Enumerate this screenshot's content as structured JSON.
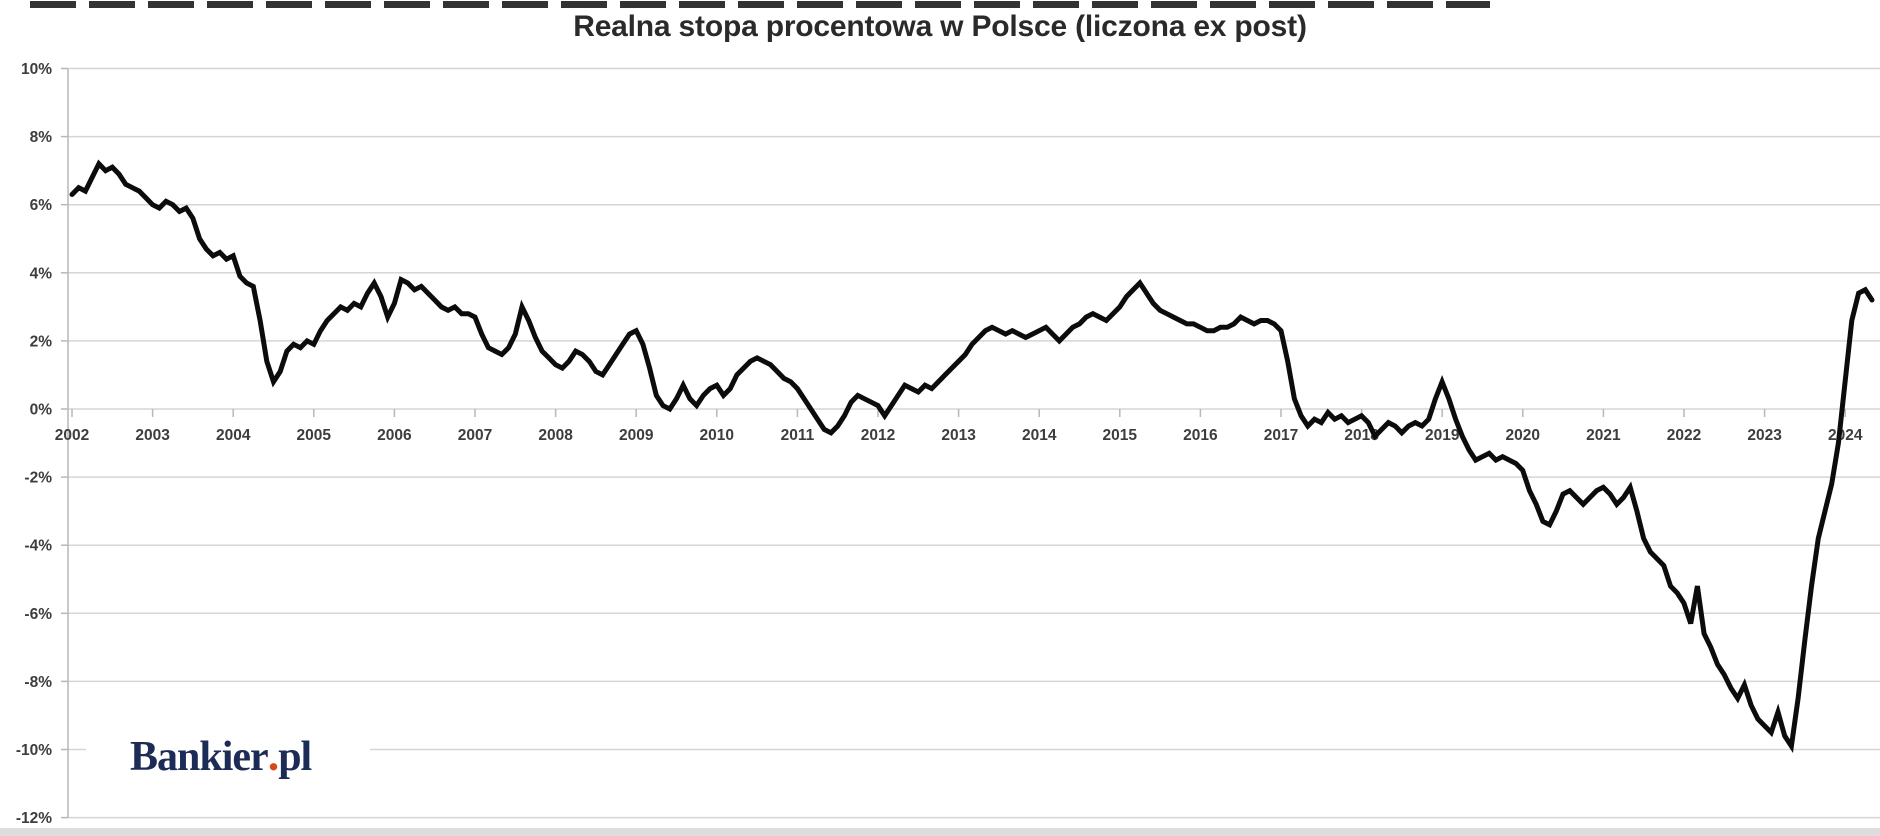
{
  "title": "Realna stopa procentowa w Polsce (liczona ex post)",
  "logo": {
    "brand": "Bankier",
    "dot": ".",
    "suffix": "pl",
    "brand_color": "#1d2b57",
    "dot_color": "#d7481d"
  },
  "colors": {
    "background": "#ffffff",
    "line": "#0c0c0c",
    "gridline": "#d7d5d5",
    "axis": "#b9b7b7",
    "tick_label": "#3d3d3d",
    "title": "#2a2a2a",
    "top_dashes": "#333333",
    "bottom_strip": "#dedcdc"
  },
  "chart_data": {
    "type": "line",
    "title": "Realna stopa procentowa w Polsce (liczona ex post)",
    "xlabel": "",
    "ylabel": "",
    "ylim": [
      -12,
      10
    ],
    "xlim": [
      2002,
      2024.45
    ],
    "grid": "horizontal-only",
    "legend": "none",
    "y_ticks": [
      10,
      8,
      6,
      4,
      2,
      0,
      -2,
      -4,
      -6,
      -8,
      -10,
      -12
    ],
    "y_tick_labels": [
      "10%",
      "8%",
      "6%",
      "4%",
      "2%",
      "0%",
      "-2%",
      "-4%",
      "-6%",
      "-8%",
      "-10%",
      "-12%"
    ],
    "x_tick_years": [
      2002,
      2003,
      2004,
      2005,
      2006,
      2007,
      2008,
      2009,
      2010,
      2011,
      2012,
      2013,
      2014,
      2015,
      2016,
      2017,
      2018,
      2019,
      2020,
      2021,
      2022,
      2023,
      2024
    ],
    "x_tick_labels": [
      "2002",
      "2003",
      "2004",
      "2005",
      "2006",
      "2007",
      "2008",
      "2009",
      "2010",
      "2011",
      "2012",
      "2013",
      "2014",
      "2015",
      "2016",
      "2017",
      "2018",
      "2019",
      "2020",
      "2021",
      "2022",
      "2023",
      "2024"
    ],
    "series": [
      {
        "name": "Realna stopa procentowa (ex post)",
        "x_start": 2002,
        "x_interval_years": 0.08333,
        "y_values": [
          6.3,
          6.5,
          6.4,
          6.8,
          7.2,
          7.0,
          7.1,
          6.9,
          6.6,
          6.5,
          6.4,
          6.2,
          6.0,
          5.9,
          6.1,
          6.0,
          5.8,
          5.9,
          5.6,
          5.0,
          4.7,
          4.5,
          4.6,
          4.4,
          4.5,
          3.9,
          3.7,
          3.6,
          2.6,
          1.4,
          0.8,
          1.1,
          1.7,
          1.9,
          1.8,
          2.0,
          1.9,
          2.3,
          2.6,
          2.8,
          3.0,
          2.9,
          3.1,
          3.0,
          3.4,
          3.7,
          3.3,
          2.7,
          3.1,
          3.8,
          3.7,
          3.5,
          3.6,
          3.4,
          3.2,
          3.0,
          2.9,
          3.0,
          2.8,
          2.8,
          2.7,
          2.2,
          1.8,
          1.7,
          1.6,
          1.8,
          2.2,
          3.0,
          2.6,
          2.1,
          1.7,
          1.5,
          1.3,
          1.2,
          1.4,
          1.7,
          1.6,
          1.4,
          1.1,
          1.0,
          1.3,
          1.6,
          1.9,
          2.2,
          2.3,
          1.9,
          1.2,
          0.4,
          0.1,
          0.0,
          0.3,
          0.7,
          0.3,
          0.1,
          0.4,
          0.6,
          0.7,
          0.4,
          0.6,
          1.0,
          1.2,
          1.4,
          1.5,
          1.4,
          1.3,
          1.1,
          0.9,
          0.8,
          0.6,
          0.3,
          0.0,
          -0.3,
          -0.6,
          -0.7,
          -0.5,
          -0.2,
          0.2,
          0.4,
          0.3,
          0.2,
          0.1,
          -0.2,
          0.1,
          0.4,
          0.7,
          0.6,
          0.5,
          0.7,
          0.6,
          0.8,
          1.0,
          1.2,
          1.4,
          1.6,
          1.9,
          2.1,
          2.3,
          2.4,
          2.3,
          2.2,
          2.3,
          2.2,
          2.1,
          2.2,
          2.3,
          2.4,
          2.2,
          2.0,
          2.2,
          2.4,
          2.5,
          2.7,
          2.8,
          2.7,
          2.6,
          2.8,
          3.0,
          3.3,
          3.5,
          3.7,
          3.4,
          3.1,
          2.9,
          2.8,
          2.7,
          2.6,
          2.5,
          2.5,
          2.4,
          2.3,
          2.3,
          2.4,
          2.4,
          2.5,
          2.7,
          2.6,
          2.5,
          2.6,
          2.6,
          2.5,
          2.3,
          1.4,
          0.3,
          -0.2,
          -0.5,
          -0.3,
          -0.4,
          -0.1,
          -0.3,
          -0.2,
          -0.4,
          -0.3,
          -0.2,
          -0.4,
          -0.8,
          -0.6,
          -0.4,
          -0.5,
          -0.7,
          -0.5,
          -0.4,
          -0.5,
          -0.3,
          0.3,
          0.8,
          0.3,
          -0.3,
          -0.8,
          -1.2,
          -1.5,
          -1.4,
          -1.3,
          -1.5,
          -1.4,
          -1.5,
          -1.6,
          -1.8,
          -2.4,
          -2.8,
          -3.3,
          -3.4,
          -3.0,
          -2.5,
          -2.4,
          -2.6,
          -2.8,
          -2.6,
          -2.4,
          -2.3,
          -2.5,
          -2.8,
          -2.6,
          -2.3,
          -3.0,
          -3.8,
          -4.2,
          -4.4,
          -4.6,
          -5.2,
          -5.4,
          -5.7,
          -6.3,
          -5.2,
          -6.6,
          -7.0,
          -7.5,
          -7.8,
          -8.2,
          -8.5,
          -8.1,
          -8.7,
          -9.1,
          -9.3,
          -9.5,
          -8.9,
          -9.6,
          -9.9,
          -8.5,
          -6.8,
          -5.2,
          -3.8,
          -3.0,
          -2.2,
          -1.0,
          0.8,
          2.6,
          3.4,
          3.5,
          3.2
        ]
      }
    ]
  }
}
